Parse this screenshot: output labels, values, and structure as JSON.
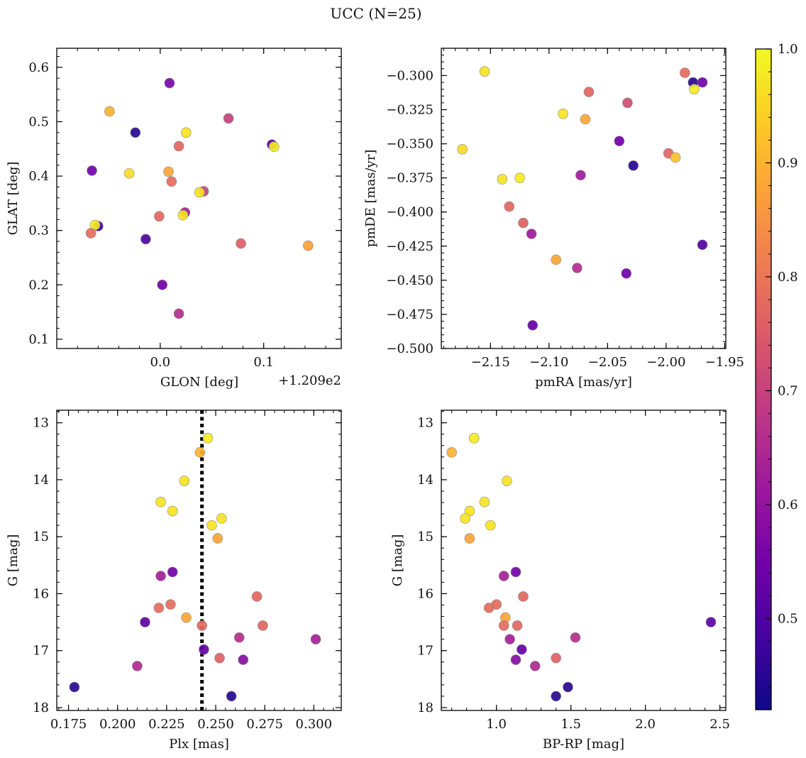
{
  "title": "UCC (N=25)",
  "colors": {
    "point_edge": "#8a8a8a",
    "frame": "#000000",
    "vline": "#000000",
    "cmap": [
      "#0d0887",
      "#46039f",
      "#7201a8",
      "#9c179e",
      "#bd3786",
      "#d8576b",
      "#ed7953",
      "#fb9f3a",
      "#fdca26",
      "#f0f921"
    ]
  },
  "colorbar": {
    "min": 0.42,
    "max": 1.0,
    "ticks": [
      0.5,
      0.6,
      0.7,
      0.8,
      0.9,
      1.0
    ],
    "tick_labels": [
      "0.5",
      "0.6",
      "0.7",
      "0.8",
      "0.9",
      "1.0"
    ]
  },
  "chart_data": [
    {
      "type": "scatter",
      "title": "",
      "xlabel": "GLON [deg]",
      "ylabel": "GLAT [deg]",
      "offset_text": "+1.209e2",
      "xlim": [
        -0.1,
        0.175
      ],
      "ylim": [
        0.083,
        0.635
      ],
      "xticks": [
        0.0,
        0.1
      ],
      "xtick_labels": [
        "0.0",
        "0.1"
      ],
      "yticks": [
        0.1,
        0.2,
        0.3,
        0.4,
        0.5,
        0.6
      ],
      "ytick_labels": [
        "0.1",
        "0.2",
        "0.3",
        "0.4",
        "0.5",
        "0.6"
      ],
      "x_minor": 0.02,
      "y_minor": 0.02,
      "y_inverted": false,
      "points": [
        {
          "x": 0.009,
          "y": 0.571,
          "c": 0.56
        },
        {
          "x": 0.066,
          "y": 0.506,
          "c": 0.7
        },
        {
          "x": -0.049,
          "y": 0.519,
          "c": 0.9
        },
        {
          "x": -0.024,
          "y": 0.48,
          "c": 0.45
        },
        {
          "x": 0.025,
          "y": 0.48,
          "c": 0.97
        },
        {
          "x": 0.108,
          "y": 0.458,
          "c": 0.52
        },
        {
          "x": 0.11,
          "y": 0.454,
          "c": 0.98
        },
        {
          "x": 0.018,
          "y": 0.455,
          "c": 0.77
        },
        {
          "x": -0.066,
          "y": 0.41,
          "c": 0.55
        },
        {
          "x": -0.03,
          "y": 0.405,
          "c": 0.96
        },
        {
          "x": 0.008,
          "y": 0.408,
          "c": 0.88
        },
        {
          "x": 0.011,
          "y": 0.39,
          "c": 0.78
        },
        {
          "x": 0.042,
          "y": 0.372,
          "c": 0.7
        },
        {
          "x": 0.038,
          "y": 0.37,
          "c": 0.97
        },
        {
          "x": -0.001,
          "y": 0.326,
          "c": 0.77
        },
        {
          "x": 0.024,
          "y": 0.333,
          "c": 0.63
        },
        {
          "x": 0.022,
          "y": 0.328,
          "c": 0.97
        },
        {
          "x": -0.06,
          "y": 0.308,
          "c": 0.48
        },
        {
          "x": -0.063,
          "y": 0.31,
          "c": 0.98
        },
        {
          "x": -0.067,
          "y": 0.295,
          "c": 0.78
        },
        {
          "x": -0.014,
          "y": 0.284,
          "c": 0.5
        },
        {
          "x": 0.078,
          "y": 0.276,
          "c": 0.76
        },
        {
          "x": 0.143,
          "y": 0.272,
          "c": 0.87
        },
        {
          "x": 0.002,
          "y": 0.2,
          "c": 0.55
        },
        {
          "x": 0.018,
          "y": 0.147,
          "c": 0.66
        }
      ]
    },
    {
      "type": "scatter",
      "title": "",
      "xlabel": "pmRA [mas/yr]",
      "ylabel": "pmDE [mas/yr]",
      "xlim": [
        -2.192,
        -1.949
      ],
      "ylim": [
        -0.5,
        -0.28
      ],
      "xticks": [
        -2.15,
        -2.1,
        -2.05,
        -2.0,
        -1.95
      ],
      "xtick_labels": [
        "−2.15",
        "−2.10",
        "−2.05",
        "−2.00",
        "−1.95"
      ],
      "yticks": [
        -0.5,
        -0.475,
        -0.45,
        -0.425,
        -0.4,
        -0.375,
        -0.35,
        -0.325,
        -0.3
      ],
      "ytick_labels": [
        "−0.500",
        "−0.475",
        "−0.450",
        "−0.425",
        "−0.400",
        "−0.375",
        "−0.350",
        "−0.325",
        "−0.300"
      ],
      "x_minor": 0.01,
      "y_minor": 0.005,
      "y_inverted": false,
      "points": [
        {
          "x": -2.155,
          "y": -0.297,
          "c": 0.97
        },
        {
          "x": -1.984,
          "y": -0.298,
          "c": 0.78
        },
        {
          "x": -1.977,
          "y": -0.305,
          "c": 0.45
        },
        {
          "x": -1.969,
          "y": -0.305,
          "c": 0.55
        },
        {
          "x": -1.976,
          "y": -0.31,
          "c": 0.98
        },
        {
          "x": -2.066,
          "y": -0.312,
          "c": 0.77
        },
        {
          "x": -2.033,
          "y": -0.32,
          "c": 0.72
        },
        {
          "x": -2.088,
          "y": -0.328,
          "c": 0.97
        },
        {
          "x": -2.069,
          "y": -0.332,
          "c": 0.88
        },
        {
          "x": -2.04,
          "y": -0.348,
          "c": 0.55
        },
        {
          "x": -2.174,
          "y": -0.354,
          "c": 0.96
        },
        {
          "x": -1.998,
          "y": -0.357,
          "c": 0.77
        },
        {
          "x": -1.992,
          "y": -0.36,
          "c": 0.92
        },
        {
          "x": -2.028,
          "y": -0.366,
          "c": 0.45
        },
        {
          "x": -2.073,
          "y": -0.373,
          "c": 0.62
        },
        {
          "x": -2.14,
          "y": -0.376,
          "c": 0.97
        },
        {
          "x": -2.125,
          "y": -0.375,
          "c": 0.98
        },
        {
          "x": -2.134,
          "y": -0.396,
          "c": 0.77
        },
        {
          "x": -2.122,
          "y": -0.408,
          "c": 0.76
        },
        {
          "x": -2.115,
          "y": -0.416,
          "c": 0.62
        },
        {
          "x": -1.969,
          "y": -0.424,
          "c": 0.5
        },
        {
          "x": -2.094,
          "y": -0.435,
          "c": 0.88
        },
        {
          "x": -2.076,
          "y": -0.441,
          "c": 0.66
        },
        {
          "x": -2.034,
          "y": -0.445,
          "c": 0.55
        },
        {
          "x": -2.114,
          "y": -0.483,
          "c": 0.53
        }
      ]
    },
    {
      "type": "scatter",
      "title": "",
      "xlabel": "Plx [mas]",
      "ylabel": "G [mag]",
      "xlim": [
        0.169,
        0.314
      ],
      "ylim": [
        12.78,
        18.05
      ],
      "xticks": [
        0.175,
        0.2,
        0.225,
        0.25,
        0.275,
        0.3
      ],
      "xtick_labels": [
        "0.175",
        "0.200",
        "0.225",
        "0.250",
        "0.275",
        "0.300"
      ],
      "yticks": [
        13,
        14,
        15,
        16,
        17,
        18
      ],
      "ytick_labels": [
        "13",
        "14",
        "15",
        "16",
        "17",
        "18"
      ],
      "x_minor": 0.005,
      "y_minor": 0.2,
      "y_inverted": true,
      "vline": 0.243,
      "points": [
        {
          "x": 0.246,
          "y": 13.27,
          "c": 0.98
        },
        {
          "x": 0.242,
          "y": 13.52,
          "c": 0.9
        },
        {
          "x": 0.234,
          "y": 14.02,
          "c": 0.97
        },
        {
          "x": 0.222,
          "y": 14.39,
          "c": 0.97
        },
        {
          "x": 0.228,
          "y": 14.55,
          "c": 0.97
        },
        {
          "x": 0.253,
          "y": 14.68,
          "c": 0.97
        },
        {
          "x": 0.248,
          "y": 14.8,
          "c": 0.97
        },
        {
          "x": 0.251,
          "y": 15.03,
          "c": 0.88
        },
        {
          "x": 0.228,
          "y": 15.62,
          "c": 0.55
        },
        {
          "x": 0.222,
          "y": 15.69,
          "c": 0.63
        },
        {
          "x": 0.271,
          "y": 16.05,
          "c": 0.77
        },
        {
          "x": 0.227,
          "y": 16.19,
          "c": 0.78
        },
        {
          "x": 0.221,
          "y": 16.25,
          "c": 0.78
        },
        {
          "x": 0.235,
          "y": 16.42,
          "c": 0.88
        },
        {
          "x": 0.214,
          "y": 16.5,
          "c": 0.52
        },
        {
          "x": 0.243,
          "y": 16.56,
          "c": 0.78
        },
        {
          "x": 0.274,
          "y": 16.56,
          "c": 0.77
        },
        {
          "x": 0.262,
          "y": 16.77,
          "c": 0.66
        },
        {
          "x": 0.301,
          "y": 16.8,
          "c": 0.63
        },
        {
          "x": 0.244,
          "y": 16.98,
          "c": 0.53
        },
        {
          "x": 0.252,
          "y": 17.13,
          "c": 0.76
        },
        {
          "x": 0.264,
          "y": 17.16,
          "c": 0.58
        },
        {
          "x": 0.21,
          "y": 17.27,
          "c": 0.65
        },
        {
          "x": 0.178,
          "y": 17.64,
          "c": 0.45
        },
        {
          "x": 0.258,
          "y": 17.8,
          "c": 0.45
        }
      ]
    },
    {
      "type": "scatter",
      "title": "",
      "xlabel": "BP-RP [mag]",
      "ylabel": "G [mag]",
      "xlim": [
        0.63,
        2.54
      ],
      "ylim": [
        12.78,
        18.05
      ],
      "xticks": [
        1.0,
        1.5,
        2.0,
        2.5
      ],
      "xtick_labels": [
        "1.0",
        "1.5",
        "2.0",
        "2.5"
      ],
      "yticks": [
        13,
        14,
        15,
        16,
        17,
        18
      ],
      "ytick_labels": [
        "13",
        "14",
        "15",
        "16",
        "17",
        "18"
      ],
      "x_minor": 0.1,
      "y_minor": 0.2,
      "y_inverted": true,
      "points": [
        {
          "x": 0.85,
          "y": 13.27,
          "c": 0.98
        },
        {
          "x": 0.7,
          "y": 13.52,
          "c": 0.9
        },
        {
          "x": 1.07,
          "y": 14.02,
          "c": 0.97
        },
        {
          "x": 0.92,
          "y": 14.39,
          "c": 0.97
        },
        {
          "x": 0.82,
          "y": 14.55,
          "c": 0.97
        },
        {
          "x": 0.79,
          "y": 14.68,
          "c": 0.97
        },
        {
          "x": 0.96,
          "y": 14.8,
          "c": 0.97
        },
        {
          "x": 0.82,
          "y": 15.03,
          "c": 0.88
        },
        {
          "x": 1.13,
          "y": 15.62,
          "c": 0.55
        },
        {
          "x": 1.05,
          "y": 15.69,
          "c": 0.63
        },
        {
          "x": 1.18,
          "y": 16.05,
          "c": 0.77
        },
        {
          "x": 1.0,
          "y": 16.19,
          "c": 0.78
        },
        {
          "x": 0.95,
          "y": 16.25,
          "c": 0.78
        },
        {
          "x": 1.06,
          "y": 16.42,
          "c": 0.88
        },
        {
          "x": 2.44,
          "y": 16.5,
          "c": 0.52
        },
        {
          "x": 1.05,
          "y": 16.56,
          "c": 0.78
        },
        {
          "x": 1.14,
          "y": 16.56,
          "c": 0.77
        },
        {
          "x": 1.53,
          "y": 16.77,
          "c": 0.66
        },
        {
          "x": 1.09,
          "y": 16.8,
          "c": 0.63
        },
        {
          "x": 1.17,
          "y": 16.98,
          "c": 0.53
        },
        {
          "x": 1.4,
          "y": 17.13,
          "c": 0.76
        },
        {
          "x": 1.13,
          "y": 17.16,
          "c": 0.58
        },
        {
          "x": 1.26,
          "y": 17.27,
          "c": 0.65
        },
        {
          "x": 1.48,
          "y": 17.64,
          "c": 0.45
        },
        {
          "x": 1.4,
          "y": 17.8,
          "c": 0.45
        }
      ]
    }
  ]
}
